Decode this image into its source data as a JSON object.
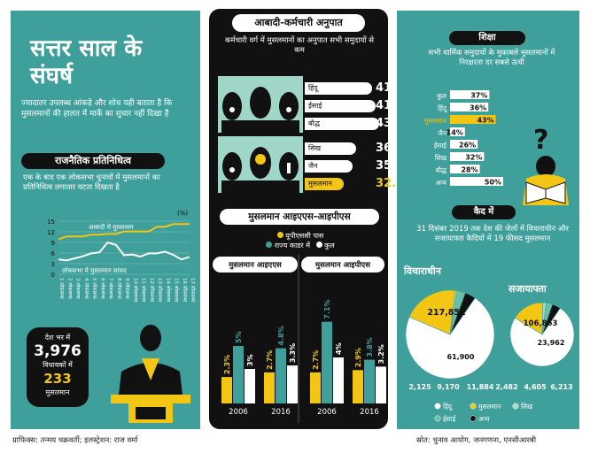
{
  "title": "सत्तर साल के संघर्ष",
  "intro": "ज्यादातर उपलब्ध आंकड़े और शोध यही बताता है कि मुसलमानों की हालत में मार्के का सुधार नहीं दिखा है",
  "political": {
    "header": "राजनैतिक प्रतिनिधित्व",
    "subtitle": "एक के बाद एक लोकसभा चुनावों में मुसलमानों का प्रतिनिधित्व लगातार घटता दिखता है",
    "unit": "(%)",
    "series_a_label": "आबादी में मुसलमान",
    "series_b_label": "लोकसभा में मुसलमान सांसद",
    "y_ticks": [
      "15",
      "12",
      "9",
      "6",
      "3",
      "0"
    ],
    "x_labels": [
      "1 लोकसभा",
      "2 लोकसभा",
      "3 लोकसभा",
      "4 लोकसभा",
      "5 लोकसभा",
      "6 लोकसभा",
      "7 लोकसभा",
      "8 लोकसभा",
      "9 लोकसभा",
      "10 लोकसभा",
      "11 लोकसभा",
      "12 लोकसभा",
      "13 लोकसभा",
      "14 लोकसभा",
      "15 लोकसभा",
      "16 लोकसभा",
      "17 लोकसभा"
    ],
    "stat_line1": "देश भर में",
    "stat_total": "3,976",
    "stat_line2": "विधायकों में",
    "stat_muslim": "233",
    "stat_line3": "मुसलमान"
  },
  "ratio": {
    "header": "आबादी-कर्मचारी अनुपात",
    "subtitle": "कर्मचारी वर्ग में मुसलमानों का अनुपात सभी समुदायों से कम",
    "rows": [
      {
        "label": "हिंदू",
        "value": "41"
      },
      {
        "label": "ईसाई",
        "value": "41.9"
      },
      {
        "label": "बौद्ध",
        "value": "43.1"
      },
      {
        "label": "सिख",
        "value": "36.3"
      },
      {
        "label": "जैन",
        "value": "35.5"
      },
      {
        "label": "मुसलमान",
        "value": "32.6"
      }
    ]
  },
  "services": {
    "header": "मुसलमान आइएएस-आइपीएस",
    "legend_upsc": "यूपीएससी पास",
    "legend_cadre": "राज्य काडर में",
    "legend_total": "कुल",
    "ias_label": "मुसलमान आइएएस",
    "ips_label": "मुसलमान आइपीएस",
    "years": [
      "2006",
      "2016"
    ]
  },
  "education": {
    "header": "शिक्षा",
    "subtitle": "सभी धार्मिक समुदायों के मुकाबले मुसलमानों में निरक्षरता दर सबसे ऊंची"
  },
  "jail": {
    "header": "कैद में",
    "subtitle": "31 दिसंबर 2019 तक देश की जेलों में विचाराधीन और सजायाफ्ता कैदियों में 19 फीसद मुसलमान",
    "undertrial_label": "विचाराधीन",
    "convicted_label": "सजायाफ्ता",
    "legend": [
      "हिंदू",
      "मुसलमान",
      "सिख",
      "ईसाई",
      "अन्य"
    ]
  },
  "credit_left": "ग्राफिक्स: तन्मय चक्रवर्ती; इलस्ट्रेशन: राज वर्मा",
  "credit_right": "स्रोत: चुनाव आयोग, जनगणना, एनसीआरबी",
  "colors": {
    "teal": "#3f9f9b",
    "yellow": "#f3c614",
    "black": "#111111",
    "white": "#ffffff"
  },
  "chart_data": [
    {
      "type": "line",
      "title": "राजनैतिक प्रतिनिधित्व",
      "x": [
        1,
        2,
        3,
        4,
        5,
        6,
        7,
        8,
        9,
        10,
        11,
        12,
        13,
        14,
        15,
        16,
        17
      ],
      "ylim": [
        0,
        15
      ],
      "series": [
        {
          "name": "आबादी में मुसलमान",
          "values": [
            9.9,
            10.7,
            10.7,
            10.7,
            11.2,
            11.2,
            11.4,
            11.4,
            12.1,
            12.1,
            12.1,
            12.1,
            13.4,
            13.4,
            14.2,
            14.2,
            14.2
          ]
        },
        {
          "name": "लोकसभा में मुसलमान सांसद",
          "values": [
            4.2,
            3.9,
            4.5,
            5.1,
            5.9,
            6.2,
            9.0,
            8.3,
            5.4,
            5.6,
            5.0,
            5.9,
            5.9,
            6.4,
            5.5,
            4.2,
            4.9
          ]
        }
      ]
    },
    {
      "type": "bar",
      "title": "मुसलमान आइएएस",
      "categories": [
        "2006",
        "2016"
      ],
      "series": [
        {
          "name": "यूपीएससी पास",
          "values": [
            2.3,
            2.7
          ]
        },
        {
          "name": "राज्य काडर में",
          "values": [
            5,
            4.8
          ]
        },
        {
          "name": "कुल",
          "values": [
            3,
            3.3
          ]
        }
      ]
    },
    {
      "type": "bar",
      "title": "मुसलमान आइपीएस",
      "categories": [
        "2006",
        "2016"
      ],
      "series": [
        {
          "name": "यूपीएससी पास",
          "values": [
            2.7,
            2.9
          ]
        },
        {
          "name": "राज्य काडर में",
          "values": [
            7.1,
            3.8
          ]
        },
        {
          "name": "कुल",
          "values": [
            4,
            3.2
          ]
        }
      ]
    },
    {
      "type": "bar",
      "title": "शिक्षा",
      "categories": [
        "कुल",
        "हिंदू",
        "मुसलमान",
        "जैन",
        "ईसाई",
        "सिख",
        "बौद्ध",
        "अन्य"
      ],
      "values": [
        37,
        36,
        43,
        14,
        26,
        32,
        28,
        50
      ],
      "value_labels": [
        "37%",
        "36%",
        "43%",
        "14%",
        "26%",
        "32%",
        "28%",
        "50%"
      ]
    },
    {
      "type": "pie",
      "title": "विचाराधीन",
      "categories": [
        "हिंदू",
        "मुसलमान",
        "सिख",
        "ईसाई",
        "अन्य"
      ],
      "values": [
        217851,
        61900,
        2125,
        9170,
        11884
      ],
      "value_labels": [
        "217,851",
        "61,900",
        "2,125",
        "9,170",
        "11,884"
      ]
    },
    {
      "type": "pie",
      "title": "सजायाफ्ता",
      "categories": [
        "हिंदू",
        "मुसलमान",
        "सिख",
        "ईसाई",
        "अन्य"
      ],
      "values": [
        106863,
        23962,
        2482,
        4605,
        6213
      ],
      "value_labels": [
        "106,863",
        "23,962",
        "2,482",
        "4,605",
        "6,213"
      ]
    }
  ]
}
